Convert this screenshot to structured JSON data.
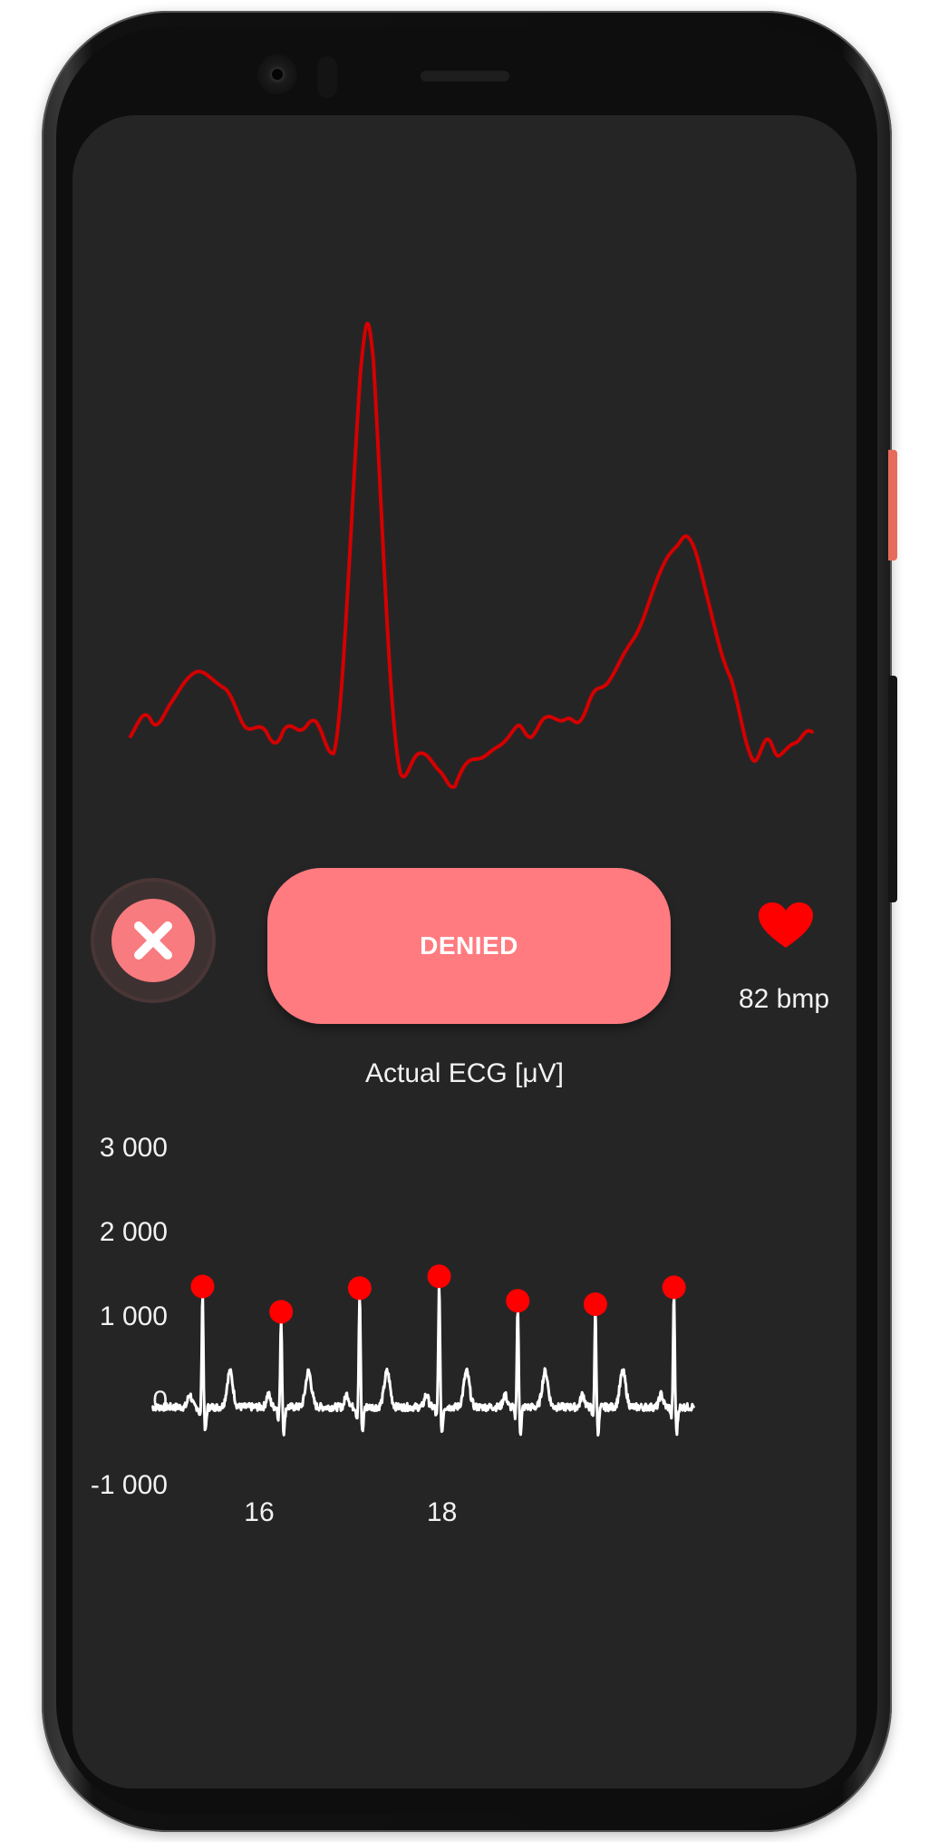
{
  "status": {
    "icon": "close-icon",
    "label": "DENIED",
    "color": "#ff7b80"
  },
  "heart_rate": {
    "icon": "heart-icon",
    "text": "82 bmp",
    "color": "#ff0000"
  },
  "ecg_title": "Actual ECG [μV]",
  "colors": {
    "screen_bg": "#252526",
    "waveform_top": "#d40000",
    "signal": "#ffffff",
    "peak_marker": "#ff0000"
  },
  "chart_data": {
    "type": "line",
    "title": "Actual ECG [μV]",
    "xlabel": "",
    "ylabel": "",
    "xlim": [
      14.8,
      21.0
    ],
    "ylim": [
      -1000,
      3000
    ],
    "y_ticks": [
      "3 000",
      "2 000",
      "1 000",
      "0",
      "-1 000"
    ],
    "y_tick_values": [
      3000,
      2000,
      1000,
      0,
      -1000
    ],
    "x_ticks": [
      "16",
      "18"
    ],
    "x_tick_values": [
      16,
      18
    ],
    "r_peaks": [
      {
        "x": 15.38,
        "y": 1350
      },
      {
        "x": 16.24,
        "y": 1050
      },
      {
        "x": 17.1,
        "y": 1330
      },
      {
        "x": 17.97,
        "y": 1470
      },
      {
        "x": 18.83,
        "y": 1180
      },
      {
        "x": 19.68,
        "y": 1140
      },
      {
        "x": 20.54,
        "y": 1340
      }
    ],
    "grid": false
  }
}
